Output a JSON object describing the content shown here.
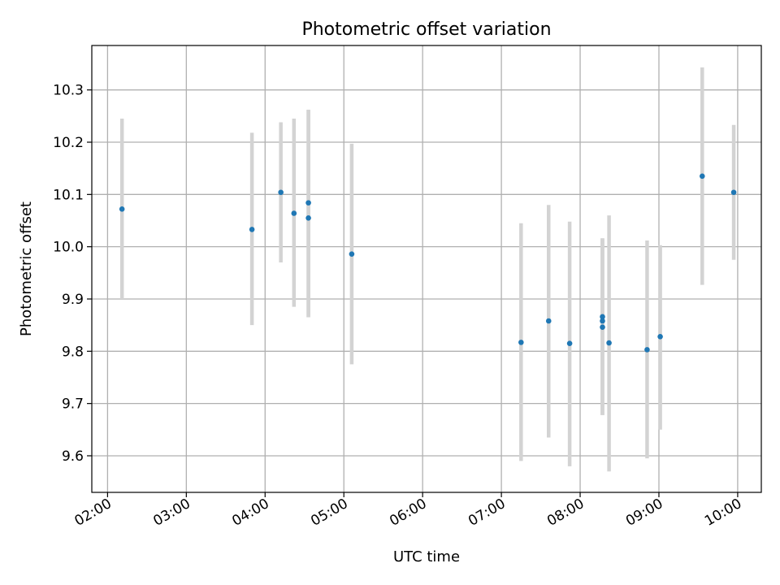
{
  "chart_data": {
    "type": "scatter",
    "title": "Photometric offset variation",
    "xlabel": "UTC time",
    "ylabel": "Photometric offset",
    "x_ticks": [
      "02:00",
      "03:00",
      "04:00",
      "05:00",
      "06:00",
      "07:00",
      "08:00",
      "09:00",
      "10:00"
    ],
    "y_ticks": [
      "9.6",
      "9.7",
      "9.8",
      "9.9",
      "10.0",
      "10.1",
      "10.2",
      "10.3"
    ],
    "xlim": [
      "01:48",
      "10:18"
    ],
    "ylim": [
      9.53,
      10.385
    ],
    "grid": true,
    "colors": {
      "point": "#1f77b4",
      "errorbar": "#d3d3d3",
      "grid": "#b0b0b0"
    },
    "series": [
      {
        "points": [
          {
            "x": "02:11",
            "y": 10.072,
            "ylow": 9.9,
            "yhigh": 10.245
          },
          {
            "x": "03:50",
            "y": 10.033,
            "ylow": 9.85,
            "yhigh": 10.218
          },
          {
            "x": "04:12",
            "y": 10.104,
            "ylow": 9.97,
            "yhigh": 10.238
          },
          {
            "x": "04:22",
            "y": 10.064,
            "ylow": 9.885,
            "yhigh": 10.245
          },
          {
            "x": "04:33",
            "y": 10.084,
            "ylow": 9.865,
            "yhigh": 10.262
          },
          {
            "x": "04:33",
            "y": 10.055,
            "ylow": 9.865,
            "yhigh": 10.262
          },
          {
            "x": "05:06",
            "y": 9.986,
            "ylow": 9.775,
            "yhigh": 10.197
          },
          {
            "x": "07:15",
            "y": 9.817,
            "ylow": 9.59,
            "yhigh": 10.045
          },
          {
            "x": "07:36",
            "y": 9.858,
            "ylow": 9.635,
            "yhigh": 10.08
          },
          {
            "x": "07:52",
            "y": 9.815,
            "ylow": 9.58,
            "yhigh": 10.048
          },
          {
            "x": "08:17",
            "y": 9.866,
            "ylow": 9.678,
            "yhigh": 10.016
          },
          {
            "x": "08:17",
            "y": 9.858,
            "ylow": 9.678,
            "yhigh": 10.016
          },
          {
            "x": "08:17",
            "y": 9.846,
            "ylow": 9.678,
            "yhigh": 10.016
          },
          {
            "x": "08:22",
            "y": 9.816,
            "ylow": 9.57,
            "yhigh": 10.06
          },
          {
            "x": "08:51",
            "y": 9.803,
            "ylow": 9.595,
            "yhigh": 10.012
          },
          {
            "x": "09:01",
            "y": 9.828,
            "ylow": 9.65,
            "yhigh": 10.003
          },
          {
            "x": "09:33",
            "y": 10.135,
            "ylow": 9.927,
            "yhigh": 10.343
          },
          {
            "x": "09:57",
            "y": 10.104,
            "ylow": 9.975,
            "yhigh": 10.233
          }
        ]
      }
    ]
  }
}
